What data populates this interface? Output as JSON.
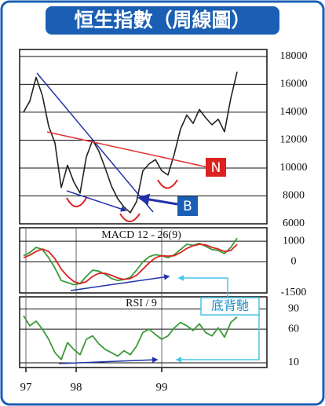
{
  "chart_data": [
    {
      "type": "line",
      "title": "恒生指數（周線圖）",
      "x": [
        0,
        4,
        8,
        12,
        16,
        20,
        24,
        28,
        32,
        36,
        40,
        44,
        48,
        52,
        56,
        60,
        64,
        68,
        72,
        76,
        80,
        84,
        88,
        92,
        96,
        100,
        104,
        108,
        112,
        116,
        120,
        124,
        128,
        132,
        136
      ],
      "series": [
        {
          "color": "#222222",
          "values": [
            14000,
            14800,
            16500,
            15200,
            13000,
            11800,
            8600,
            10200,
            9000,
            8200,
            10800,
            12000,
            11200,
            10000,
            8700,
            7800,
            7200,
            6800,
            7600,
            9800,
            10300,
            10600,
            9800,
            9500,
            11000,
            12800,
            13800,
            13200,
            14200,
            13600,
            13100,
            13500,
            12600,
            15000,
            16900
          ]
        }
      ],
      "ylim": [
        6000,
        18500
      ],
      "yticks": [
        6000,
        8000,
        10000,
        12000,
        14000,
        16000,
        18000
      ],
      "grid": true,
      "annotations": [
        "N",
        "B"
      ]
    },
    {
      "type": "line",
      "title": "MACD 12 - 26(9)",
      "x": [
        0,
        4,
        8,
        12,
        16,
        20,
        24,
        28,
        32,
        36,
        40,
        44,
        48,
        52,
        56,
        60,
        64,
        68,
        72,
        76,
        80,
        84,
        88,
        92,
        96,
        100,
        104,
        108,
        112,
        116,
        120,
        124,
        128,
        132,
        136
      ],
      "series": [
        {
          "color": "#3a9a3a",
          "values": [
            300,
            450,
            700,
            600,
            200,
            -300,
            -900,
            -1000,
            -1100,
            -1050,
            -700,
            -400,
            -450,
            -600,
            -800,
            -900,
            -850,
            -750,
            -400,
            0,
            250,
            350,
            300,
            200,
            350,
            600,
            850,
            800,
            900,
            750,
            600,
            550,
            400,
            700,
            1150
          ]
        },
        {
          "color": "#dd2222",
          "values": [
            200,
            330,
            500,
            620,
            500,
            150,
            -350,
            -700,
            -950,
            -1050,
            -950,
            -700,
            -550,
            -550,
            -650,
            -780,
            -850,
            -800,
            -650,
            -350,
            -50,
            200,
            300,
            280,
            300,
            450,
            650,
            780,
            850,
            820,
            700,
            620,
            500,
            550,
            850
          ]
        }
      ],
      "ylim": [
        -1500,
        1650
      ],
      "yticks": [
        -1500,
        0,
        1000
      ],
      "grid": true
    },
    {
      "type": "line",
      "title": "RSI / 9",
      "x": [
        0,
        4,
        8,
        12,
        16,
        20,
        24,
        28,
        32,
        36,
        40,
        44,
        48,
        52,
        56,
        60,
        64,
        68,
        72,
        76,
        80,
        84,
        88,
        92,
        96,
        100,
        104,
        108,
        112,
        116,
        120,
        124,
        128,
        132,
        136
      ],
      "series": [
        {
          "color": "#3a9a3a",
          "values": [
            80,
            65,
            72,
            60,
            45,
            25,
            15,
            40,
            30,
            22,
            45,
            50,
            38,
            30,
            25,
            20,
            28,
            22,
            35,
            55,
            60,
            52,
            45,
            50,
            62,
            70,
            65,
            58,
            68,
            55,
            50,
            62,
            48,
            70,
            78
          ]
        }
      ],
      "ylim": [
        3,
        108
      ],
      "yticks": [
        10,
        60,
        90
      ],
      "grid": true,
      "xlim": [
        -2.5,
        155
      ],
      "xticks": [
        {
          "value": 1.5,
          "label": "97"
        },
        {
          "value": 33.5,
          "label": "98"
        },
        {
          "value": 88,
          "label": "99"
        }
      ]
    }
  ],
  "note": "底背馳"
}
